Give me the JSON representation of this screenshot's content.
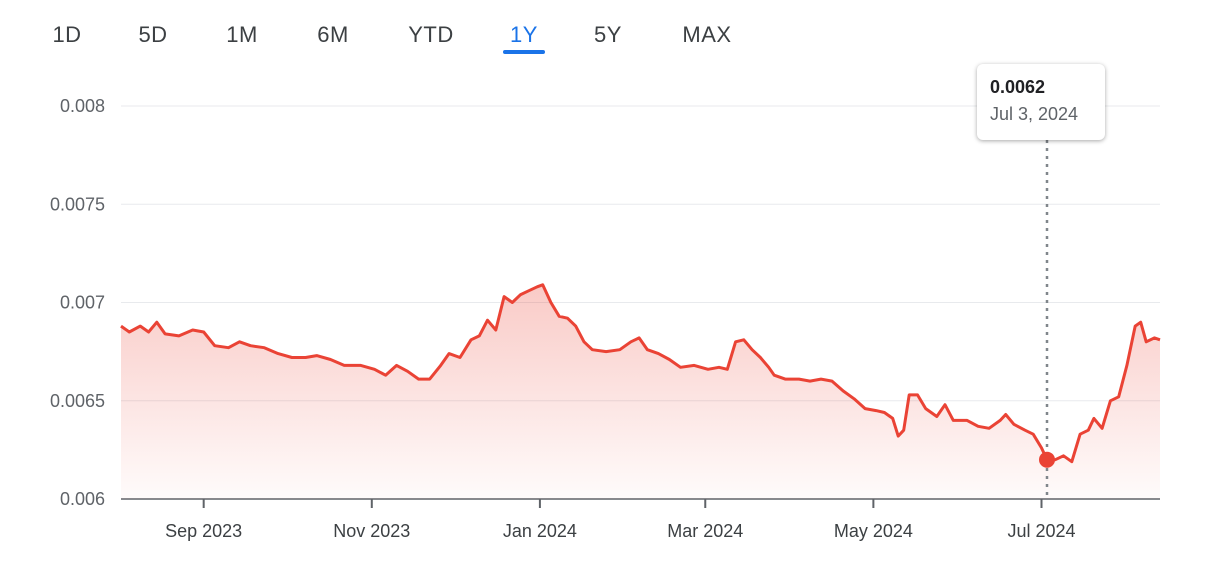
{
  "range_tabs": {
    "items": [
      "1D",
      "5D",
      "1M",
      "6M",
      "YTD",
      "1Y",
      "5Y",
      "MAX"
    ],
    "active": "1Y"
  },
  "colors": {
    "line": "#ea4335",
    "fill": "#fce8e6",
    "active_tab": "#1a73e8",
    "grid": "#e8eaed"
  },
  "tooltip": {
    "value": "0.0062",
    "date": "Jul 3, 2024"
  },
  "chart_data": {
    "type": "line",
    "title": "",
    "xlabel": "",
    "ylabel": "",
    "ylim": [
      0.006,
      0.008
    ],
    "yticks": [
      "0.008",
      "0.0075",
      "0.007",
      "0.0065",
      "0.006"
    ],
    "xticks": [
      "Sep 2023",
      "Nov 2023",
      "Jan 2024",
      "Mar 2024",
      "May 2024",
      "Jul 2024"
    ],
    "grid": "horizontal",
    "highlight": {
      "date": "2024-07-03",
      "value": 0.0062
    },
    "series": [
      {
        "points": [
          [
            "2023-08-02",
            0.00688
          ],
          [
            "2023-08-05",
            0.00685
          ],
          [
            "2023-08-09",
            0.00688
          ],
          [
            "2023-08-12",
            0.00685
          ],
          [
            "2023-08-15",
            0.0069
          ],
          [
            "2023-08-18",
            0.00684
          ],
          [
            "2023-08-23",
            0.00683
          ],
          [
            "2023-08-28",
            0.00686
          ],
          [
            "2023-09-01",
            0.00685
          ],
          [
            "2023-09-05",
            0.00678
          ],
          [
            "2023-09-10",
            0.00677
          ],
          [
            "2023-09-14",
            0.0068
          ],
          [
            "2023-09-18",
            0.00678
          ],
          [
            "2023-09-23",
            0.00677
          ],
          [
            "2023-09-28",
            0.00674
          ],
          [
            "2023-10-03",
            0.00672
          ],
          [
            "2023-10-08",
            0.00672
          ],
          [
            "2023-10-12",
            0.00673
          ],
          [
            "2023-10-17",
            0.00671
          ],
          [
            "2023-10-22",
            0.00668
          ],
          [
            "2023-10-28",
            0.00668
          ],
          [
            "2023-11-02",
            0.00666
          ],
          [
            "2023-11-06",
            0.00663
          ],
          [
            "2023-11-10",
            0.00668
          ],
          [
            "2023-11-14",
            0.00665
          ],
          [
            "2023-11-18",
            0.00661
          ],
          [
            "2023-11-22",
            0.00661
          ],
          [
            "2023-11-26",
            0.00668
          ],
          [
            "2023-11-29",
            0.00674
          ],
          [
            "2023-12-03",
            0.00672
          ],
          [
            "2023-12-07",
            0.00681
          ],
          [
            "2023-12-10",
            0.00683
          ],
          [
            "2023-12-13",
            0.00691
          ],
          [
            "2023-12-16",
            0.00686
          ],
          [
            "2023-12-19",
            0.00703
          ],
          [
            "2023-12-22",
            0.007
          ],
          [
            "2023-12-25",
            0.00704
          ],
          [
            "2023-12-28",
            0.00706
          ],
          [
            "2023-12-31",
            0.00708
          ],
          [
            "2024-01-02",
            0.00709
          ],
          [
            "2024-01-05",
            0.007
          ],
          [
            "2024-01-08",
            0.00693
          ],
          [
            "2024-01-11",
            0.00692
          ],
          [
            "2024-01-14",
            0.00688
          ],
          [
            "2024-01-17",
            0.0068
          ],
          [
            "2024-01-20",
            0.00676
          ],
          [
            "2024-01-25",
            0.00675
          ],
          [
            "2024-01-30",
            0.00676
          ],
          [
            "2024-02-03",
            0.0068
          ],
          [
            "2024-02-06",
            0.00682
          ],
          [
            "2024-02-09",
            0.00676
          ],
          [
            "2024-02-13",
            0.00674
          ],
          [
            "2024-02-17",
            0.00671
          ],
          [
            "2024-02-21",
            0.00667
          ],
          [
            "2024-02-26",
            0.00668
          ],
          [
            "2024-03-02",
            0.00666
          ],
          [
            "2024-03-06",
            0.00667
          ],
          [
            "2024-03-09",
            0.00666
          ],
          [
            "2024-03-12",
            0.0068
          ],
          [
            "2024-03-15",
            0.00681
          ],
          [
            "2024-03-18",
            0.00676
          ],
          [
            "2024-03-21",
            0.00672
          ],
          [
            "2024-03-24",
            0.00667
          ],
          [
            "2024-03-26",
            0.00663
          ],
          [
            "2024-03-30",
            0.00661
          ],
          [
            "2024-04-04",
            0.00661
          ],
          [
            "2024-04-08",
            0.0066
          ],
          [
            "2024-04-12",
            0.00661
          ],
          [
            "2024-04-16",
            0.0066
          ],
          [
            "2024-04-20",
            0.00655
          ],
          [
            "2024-04-24",
            0.00651
          ],
          [
            "2024-04-28",
            0.00646
          ],
          [
            "2024-05-02",
            0.00645
          ],
          [
            "2024-05-05",
            0.00644
          ],
          [
            "2024-05-08",
            0.00641
          ],
          [
            "2024-05-10",
            0.00632
          ],
          [
            "2024-05-12",
            0.00635
          ],
          [
            "2024-05-14",
            0.00653
          ],
          [
            "2024-05-17",
            0.00653
          ],
          [
            "2024-05-20",
            0.00646
          ],
          [
            "2024-05-24",
            0.00642
          ],
          [
            "2024-05-27",
            0.00648
          ],
          [
            "2024-05-30",
            0.0064
          ],
          [
            "2024-06-04",
            0.0064
          ],
          [
            "2024-06-08",
            0.00637
          ],
          [
            "2024-06-12",
            0.00636
          ],
          [
            "2024-06-16",
            0.0064
          ],
          [
            "2024-06-18",
            0.00643
          ],
          [
            "2024-06-21",
            0.00638
          ],
          [
            "2024-06-25",
            0.00635
          ],
          [
            "2024-06-28",
            0.00633
          ],
          [
            "2024-07-01",
            0.00626
          ],
          [
            "2024-07-03",
            0.0062
          ],
          [
            "2024-07-06",
            0.0062
          ],
          [
            "2024-07-09",
            0.00622
          ],
          [
            "2024-07-12",
            0.00619
          ],
          [
            "2024-07-15",
            0.00633
          ],
          [
            "2024-07-18",
            0.00635
          ],
          [
            "2024-07-20",
            0.00641
          ],
          [
            "2024-07-23",
            0.00636
          ],
          [
            "2024-07-26",
            0.0065
          ],
          [
            "2024-07-29",
            0.00652
          ],
          [
            "2024-08-01",
            0.00668
          ],
          [
            "2024-08-04",
            0.00688
          ],
          [
            "2024-08-06",
            0.0069
          ],
          [
            "2024-08-08",
            0.0068
          ],
          [
            "2024-08-11",
            0.00682
          ],
          [
            "2024-08-13",
            0.00681
          ]
        ]
      }
    ]
  }
}
